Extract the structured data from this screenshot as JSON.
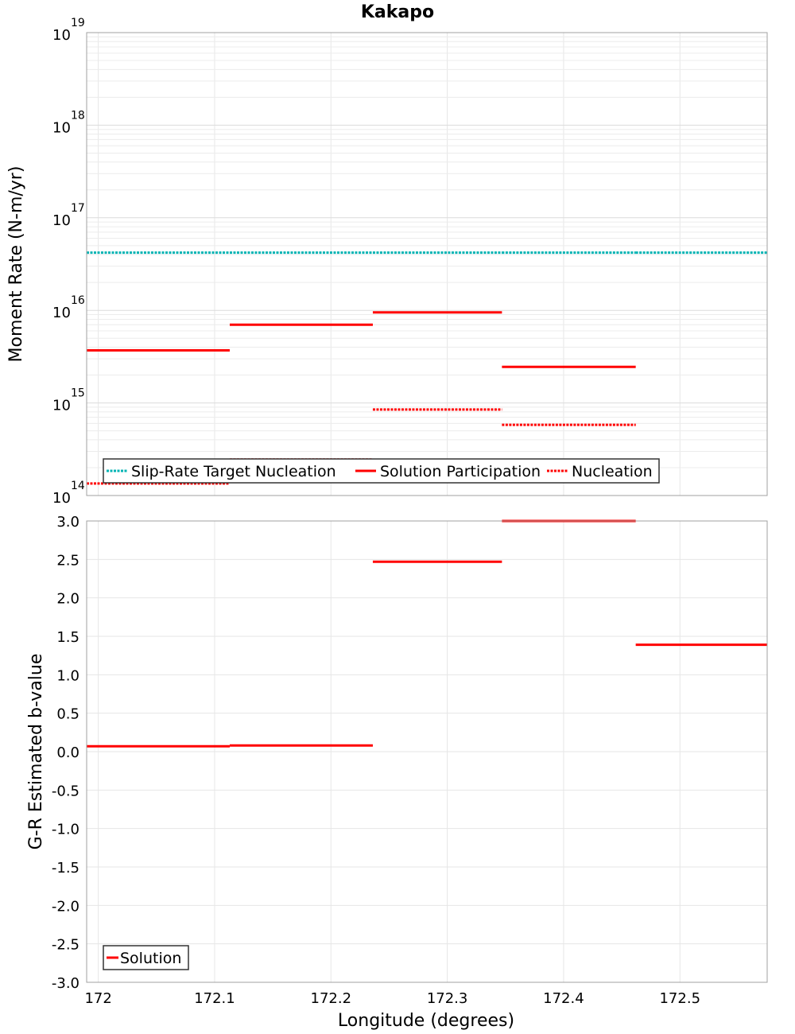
{
  "chart_data": [
    {
      "type": "line",
      "title": "Kakapo",
      "ylabel": "Moment Rate (N-m/yr)",
      "xlabel": "",
      "yscale": "log",
      "ylim": [
        100000000000000.0,
        1e+19
      ],
      "xlim": [
        171.99,
        172.575
      ],
      "grid": true,
      "legend_position": "bottom-left",
      "y_tick_labels": [
        {
          "base": "10",
          "exp": "14"
        },
        {
          "base": "10",
          "exp": "15"
        },
        {
          "base": "10",
          "exp": "16"
        },
        {
          "base": "10",
          "exp": "17"
        },
        {
          "base": "10",
          "exp": "18"
        },
        {
          "base": "10",
          "exp": "19"
        }
      ],
      "series": [
        {
          "name": "Slip-Rate Target Nucleation",
          "color": "#00b3b3",
          "style": "dotted",
          "segments": [
            {
              "x0": 171.99,
              "x1": 172.113,
              "y": 4.2e+16
            },
            {
              "x0": 172.113,
              "x1": 172.236,
              "y": 4.2e+16
            },
            {
              "x0": 172.236,
              "x1": 172.347,
              "y": 4.2e+16
            },
            {
              "x0": 172.347,
              "x1": 172.462,
              "y": 4.2e+16
            },
            {
              "x0": 172.462,
              "x1": 172.575,
              "y": 4.2e+16
            }
          ]
        },
        {
          "name": "Solution Participation",
          "color": "#ff0000",
          "style": "solid",
          "segments": [
            {
              "x0": 171.99,
              "x1": 172.113,
              "y": 3700000000000000.0
            },
            {
              "x0": 172.113,
              "x1": 172.236,
              "y": 7000000000000000.0
            },
            {
              "x0": 172.236,
              "x1": 172.347,
              "y": 9500000000000000.0
            },
            {
              "x0": 172.347,
              "x1": 172.462,
              "y": 2450000000000000.0
            }
          ]
        },
        {
          "name": "Nucleation",
          "color": "#ff0000",
          "style": "dotted",
          "segments": [
            {
              "x0": 171.99,
              "x1": 172.113,
              "y": 135000000000000.0
            },
            {
              "x0": 172.113,
              "x1": 172.236,
              "y": 245000000000000.0
            },
            {
              "x0": 172.236,
              "x1": 172.347,
              "y": 850000000000000.0
            },
            {
              "x0": 172.347,
              "x1": 172.462,
              "y": 580000000000000.0
            }
          ]
        }
      ]
    },
    {
      "type": "line",
      "title": "",
      "ylabel": "G-R Estimated b-value",
      "xlabel": "Longitude (degrees)",
      "ylim": [
        -3.0,
        3.0
      ],
      "xlim": [
        171.99,
        172.575
      ],
      "grid": true,
      "legend_position": "bottom-left",
      "y_ticks": [
        3.0,
        2.5,
        2.0,
        1.5,
        1.0,
        0.5,
        0.0,
        -0.5,
        -1.0,
        -1.5,
        -2.0,
        -2.5,
        -3.0
      ],
      "y_tick_labels": [
        "3.0",
        "2.5",
        "2.0",
        "1.5",
        "1.0",
        "0.5",
        "0.0",
        "-0.5",
        "-1.0",
        "-1.5",
        "-2.0",
        "-2.5",
        "-3.0"
      ],
      "x_ticks": [
        172.0,
        172.1,
        172.2,
        172.3,
        172.4,
        172.5
      ],
      "x_tick_labels": [
        "172",
        "172.1",
        "172.2",
        "172.3",
        "172.4",
        "172.5"
      ],
      "series": [
        {
          "name": "Solution",
          "color": "#ff0000",
          "style": "solid",
          "segments": [
            {
              "x0": 171.99,
              "x1": 172.113,
              "y": 0.07
            },
            {
              "x0": 172.113,
              "x1": 172.236,
              "y": 0.08
            },
            {
              "x0": 172.236,
              "x1": 172.347,
              "y": 2.47
            },
            {
              "x0": 172.347,
              "x1": 172.462,
              "y": 3.0
            },
            {
              "x0": 172.462,
              "x1": 172.575,
              "y": 1.39
            }
          ]
        }
      ]
    }
  ]
}
